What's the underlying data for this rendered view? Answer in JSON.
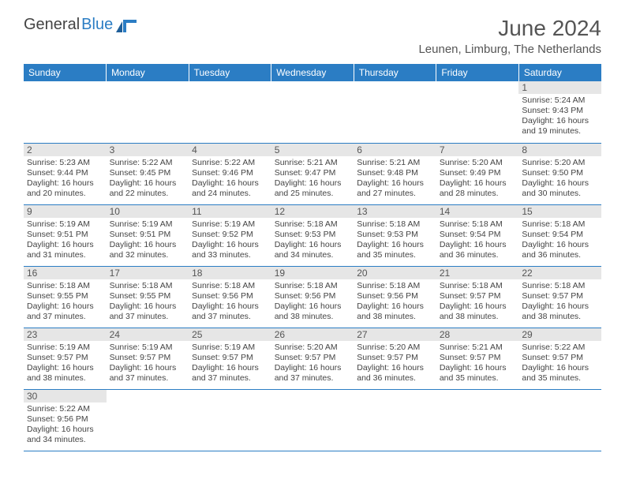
{
  "brand": {
    "general": "General",
    "blue": "Blue"
  },
  "header": {
    "month_year": "June 2024",
    "location": "Leunen, Limburg, The Netherlands"
  },
  "colors": {
    "header_bg": "#2b7dc4",
    "header_fg": "#ffffff",
    "daynum_bg": "#e6e6e6",
    "row_border": "#2b7dc4",
    "text": "#444444"
  },
  "calendar": {
    "columns": [
      "Sunday",
      "Monday",
      "Tuesday",
      "Wednesday",
      "Thursday",
      "Friday",
      "Saturday"
    ],
    "weeks": [
      [
        null,
        null,
        null,
        null,
        null,
        null,
        {
          "n": "1",
          "sunrise": "5:24 AM",
          "sunset": "9:43 PM",
          "daylight": "16 hours and 19 minutes."
        }
      ],
      [
        {
          "n": "2",
          "sunrise": "5:23 AM",
          "sunset": "9:44 PM",
          "daylight": "16 hours and 20 minutes."
        },
        {
          "n": "3",
          "sunrise": "5:22 AM",
          "sunset": "9:45 PM",
          "daylight": "16 hours and 22 minutes."
        },
        {
          "n": "4",
          "sunrise": "5:22 AM",
          "sunset": "9:46 PM",
          "daylight": "16 hours and 24 minutes."
        },
        {
          "n": "5",
          "sunrise": "5:21 AM",
          "sunset": "9:47 PM",
          "daylight": "16 hours and 25 minutes."
        },
        {
          "n": "6",
          "sunrise": "5:21 AM",
          "sunset": "9:48 PM",
          "daylight": "16 hours and 27 minutes."
        },
        {
          "n": "7",
          "sunrise": "5:20 AM",
          "sunset": "9:49 PM",
          "daylight": "16 hours and 28 minutes."
        },
        {
          "n": "8",
          "sunrise": "5:20 AM",
          "sunset": "9:50 PM",
          "daylight": "16 hours and 30 minutes."
        }
      ],
      [
        {
          "n": "9",
          "sunrise": "5:19 AM",
          "sunset": "9:51 PM",
          "daylight": "16 hours and 31 minutes."
        },
        {
          "n": "10",
          "sunrise": "5:19 AM",
          "sunset": "9:51 PM",
          "daylight": "16 hours and 32 minutes."
        },
        {
          "n": "11",
          "sunrise": "5:19 AM",
          "sunset": "9:52 PM",
          "daylight": "16 hours and 33 minutes."
        },
        {
          "n": "12",
          "sunrise": "5:18 AM",
          "sunset": "9:53 PM",
          "daylight": "16 hours and 34 minutes."
        },
        {
          "n": "13",
          "sunrise": "5:18 AM",
          "sunset": "9:53 PM",
          "daylight": "16 hours and 35 minutes."
        },
        {
          "n": "14",
          "sunrise": "5:18 AM",
          "sunset": "9:54 PM",
          "daylight": "16 hours and 36 minutes."
        },
        {
          "n": "15",
          "sunrise": "5:18 AM",
          "sunset": "9:54 PM",
          "daylight": "16 hours and 36 minutes."
        }
      ],
      [
        {
          "n": "16",
          "sunrise": "5:18 AM",
          "sunset": "9:55 PM",
          "daylight": "16 hours and 37 minutes."
        },
        {
          "n": "17",
          "sunrise": "5:18 AM",
          "sunset": "9:55 PM",
          "daylight": "16 hours and 37 minutes."
        },
        {
          "n": "18",
          "sunrise": "5:18 AM",
          "sunset": "9:56 PM",
          "daylight": "16 hours and 37 minutes."
        },
        {
          "n": "19",
          "sunrise": "5:18 AM",
          "sunset": "9:56 PM",
          "daylight": "16 hours and 38 minutes."
        },
        {
          "n": "20",
          "sunrise": "5:18 AM",
          "sunset": "9:56 PM",
          "daylight": "16 hours and 38 minutes."
        },
        {
          "n": "21",
          "sunrise": "5:18 AM",
          "sunset": "9:57 PM",
          "daylight": "16 hours and 38 minutes."
        },
        {
          "n": "22",
          "sunrise": "5:18 AM",
          "sunset": "9:57 PM",
          "daylight": "16 hours and 38 minutes."
        }
      ],
      [
        {
          "n": "23",
          "sunrise": "5:19 AM",
          "sunset": "9:57 PM",
          "daylight": "16 hours and 38 minutes."
        },
        {
          "n": "24",
          "sunrise": "5:19 AM",
          "sunset": "9:57 PM",
          "daylight": "16 hours and 37 minutes."
        },
        {
          "n": "25",
          "sunrise": "5:19 AM",
          "sunset": "9:57 PM",
          "daylight": "16 hours and 37 minutes."
        },
        {
          "n": "26",
          "sunrise": "5:20 AM",
          "sunset": "9:57 PM",
          "daylight": "16 hours and 37 minutes."
        },
        {
          "n": "27",
          "sunrise": "5:20 AM",
          "sunset": "9:57 PM",
          "daylight": "16 hours and 36 minutes."
        },
        {
          "n": "28",
          "sunrise": "5:21 AM",
          "sunset": "9:57 PM",
          "daylight": "16 hours and 35 minutes."
        },
        {
          "n": "29",
          "sunrise": "5:22 AM",
          "sunset": "9:57 PM",
          "daylight": "16 hours and 35 minutes."
        }
      ],
      [
        {
          "n": "30",
          "sunrise": "5:22 AM",
          "sunset": "9:56 PM",
          "daylight": "16 hours and 34 minutes."
        },
        null,
        null,
        null,
        null,
        null,
        null
      ]
    ],
    "labels": {
      "sunrise_prefix": "Sunrise: ",
      "sunset_prefix": "Sunset: ",
      "daylight_prefix": "Daylight: "
    }
  }
}
